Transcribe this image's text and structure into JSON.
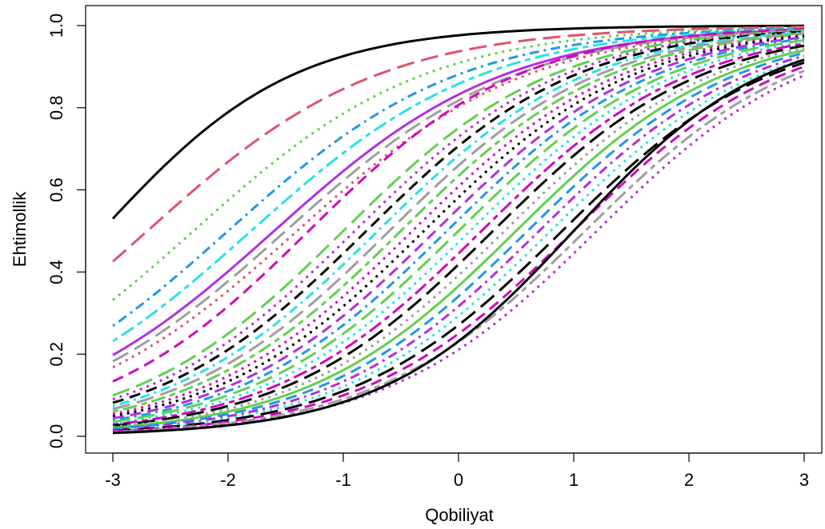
{
  "chart_data": {
    "type": "line",
    "title": "",
    "xlabel": "Qobiliyat",
    "ylabel": "Ehtimollik",
    "xlim": [
      -3,
      3
    ],
    "ylim": [
      0,
      1
    ],
    "x_ticks": [
      "-3",
      "-2",
      "-1",
      "0",
      "1",
      "2",
      "3"
    ],
    "y_ticks": [
      "0.0",
      "0.2",
      "0.4",
      "0.6",
      "0.8",
      "1.0"
    ],
    "grid": false,
    "legend": "none",
    "model": "logistic item characteristic curves, P(x) = 1 / (1 + exp(-a*(x - b)))",
    "palette": {
      "black": "#000000",
      "red": "#df536b",
      "green": "#61d04f",
      "blue": "#2297e6",
      "cyan": "#28e2e5",
      "magenta": "#cd0bbc",
      "purple": "#b030e0",
      "gray": "#9e9e9e"
    },
    "series": [
      {
        "a": 1.2,
        "b": -3.1,
        "color": "#000000",
        "dash": "solid"
      },
      {
        "a": 1.0,
        "b": -2.7,
        "color": "#df536b",
        "dash": "longdash"
      },
      {
        "a": 1.0,
        "b": -2.3,
        "color": "#61d04f",
        "dash": "dotted"
      },
      {
        "a": 1.0,
        "b": -2.0,
        "color": "#2297e6",
        "dash": "dotdash"
      },
      {
        "a": 1.0,
        "b": -1.8,
        "color": "#28e2e5",
        "dash": "twodash"
      },
      {
        "a": 1.0,
        "b": -1.6,
        "color": "#b030e0",
        "dash": "solid"
      },
      {
        "a": 1.0,
        "b": -1.5,
        "color": "#9e9e9e",
        "dash": "longdash"
      },
      {
        "a": 1.0,
        "b": -1.4,
        "color": "#df536b",
        "dash": "dotted"
      },
      {
        "a": 1.1,
        "b": -1.3,
        "color": "#cd0bbc",
        "dash": "dashed"
      },
      {
        "a": 1.1,
        "b": -1.0,
        "color": "#61d04f",
        "dash": "longdash"
      },
      {
        "a": 1.1,
        "b": -0.9,
        "color": "#b030e0",
        "dash": "dotted"
      },
      {
        "a": 1.1,
        "b": -0.8,
        "color": "#000000",
        "dash": "dashed"
      },
      {
        "a": 1.1,
        "b": -0.7,
        "color": "#28e2e5",
        "dash": "dotdash"
      },
      {
        "a": 1.1,
        "b": -0.6,
        "color": "#9e9e9e",
        "dash": "longdash"
      },
      {
        "a": 1.1,
        "b": -0.5,
        "color": "#61d04f",
        "dash": "twodash"
      },
      {
        "a": 1.1,
        "b": -0.4,
        "color": "#cd0bbc",
        "dash": "dotted"
      },
      {
        "a": 1.1,
        "b": -0.3,
        "color": "#000000",
        "dash": "dotted"
      },
      {
        "a": 1.1,
        "b": -0.2,
        "color": "#b030e0",
        "dash": "dashed"
      },
      {
        "a": 1.1,
        "b": -0.1,
        "color": "#2297e6",
        "dash": "dotdash"
      },
      {
        "a": 1.1,
        "b": 0.0,
        "color": "#61d04f",
        "dash": "longdash"
      },
      {
        "a": 1.1,
        "b": 0.1,
        "color": "#28e2e5",
        "dash": "dotted"
      },
      {
        "a": 1.1,
        "b": 0.2,
        "color": "#cd0bbc",
        "dash": "twodash"
      },
      {
        "a": 1.1,
        "b": 0.3,
        "color": "#000000",
        "dash": "longdash"
      },
      {
        "a": 1.1,
        "b": 0.4,
        "color": "#9e9e9e",
        "dash": "dotted"
      },
      {
        "a": 1.1,
        "b": 0.5,
        "color": "#61d04f",
        "dash": "solid"
      },
      {
        "a": 1.1,
        "b": 0.6,
        "color": "#2297e6",
        "dash": "dashed"
      },
      {
        "a": 1.1,
        "b": 0.7,
        "color": "#b030e0",
        "dash": "dotdash"
      },
      {
        "a": 1.1,
        "b": 0.8,
        "color": "#28e2e5",
        "dash": "dotted"
      },
      {
        "a": 1.1,
        "b": 0.9,
        "color": "#000000",
        "dash": "longdash"
      },
      {
        "a": 1.1,
        "b": 1.0,
        "color": "#cd0bbc",
        "dash": "dashed"
      },
      {
        "a": 1.1,
        "b": 1.1,
        "color": "#9e9e9e",
        "dash": "twodash"
      },
      {
        "a": 1.1,
        "b": 1.2,
        "color": "#b030e0",
        "dash": "dotted"
      },
      {
        "a": 1.2,
        "b": 1.0,
        "color": "#000000",
        "dash": "solid"
      }
    ]
  }
}
